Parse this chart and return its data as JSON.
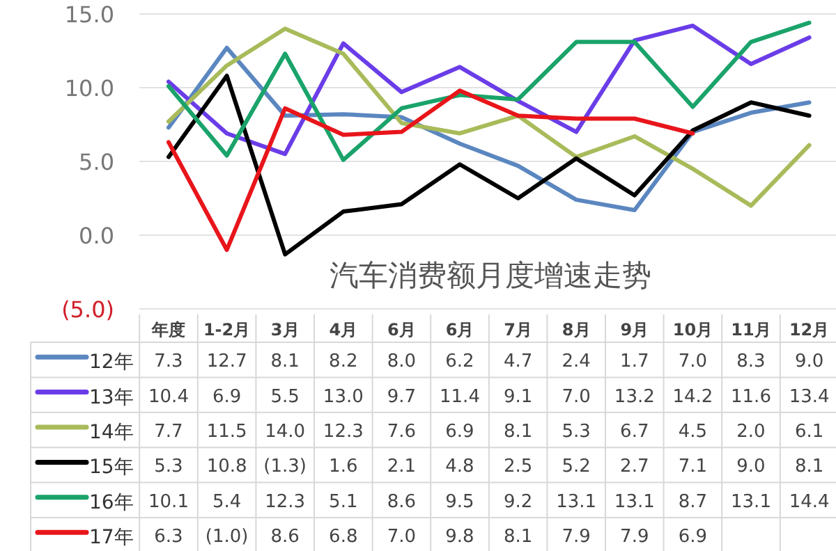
{
  "chart_data": {
    "type": "line",
    "title": "汽车消费额月度增速走势",
    "categories": [
      "年度",
      "1-2月",
      "3月",
      "4月",
      "6月",
      "6月",
      "7月",
      "8月",
      "9月",
      "10月",
      "11月",
      "12月"
    ],
    "ylim": [
      -5,
      15
    ],
    "yticks": [
      {
        "value": 15,
        "label": "15.0"
      },
      {
        "value": 10,
        "label": "10.0"
      },
      {
        "value": 5,
        "label": "5.0"
      },
      {
        "value": 0,
        "label": "0.0"
      },
      {
        "value": -5,
        "label": "(5.0)"
      }
    ],
    "grid": "y",
    "legend": "bottom",
    "series": [
      {
        "name": "12年",
        "color": "#5b87c0",
        "values": [
          7.3,
          12.7,
          8.1,
          8.2,
          8.0,
          6.2,
          4.7,
          2.4,
          1.7,
          7.0,
          8.3,
          9.0
        ],
        "value_labels": [
          "7.3",
          "12.7",
          "8.1",
          "8.2",
          "8.0",
          "6.2",
          "4.7",
          "2.4",
          "1.7",
          "7.0",
          "8.3",
          "9.0"
        ]
      },
      {
        "name": "13年",
        "color": "#6a3de8",
        "values": [
          10.4,
          6.9,
          5.5,
          13.0,
          9.7,
          11.4,
          9.1,
          7.0,
          13.2,
          14.2,
          11.6,
          13.4
        ],
        "value_labels": [
          "10.4",
          "6.9",
          "5.5",
          "13.0",
          "9.7",
          "11.4",
          "9.1",
          "7.0",
          "13.2",
          "14.2",
          "11.6",
          "13.4"
        ]
      },
      {
        "name": "14年",
        "color": "#a8bb5a",
        "values": [
          7.7,
          11.5,
          14.0,
          12.3,
          7.6,
          6.9,
          8.1,
          5.3,
          6.7,
          4.5,
          2.0,
          6.1
        ],
        "value_labels": [
          "7.7",
          "11.5",
          "14.0",
          "12.3",
          "7.6",
          "6.9",
          "8.1",
          "5.3",
          "6.7",
          "4.5",
          "2.0",
          "6.1"
        ]
      },
      {
        "name": "15年",
        "color": "#000000",
        "values": [
          5.3,
          10.8,
          -1.3,
          1.6,
          2.1,
          4.8,
          2.5,
          5.2,
          2.7,
          7.1,
          9.0,
          8.1
        ],
        "value_labels": [
          "5.3",
          "10.8",
          "(1.3)",
          "1.6",
          "2.1",
          "4.8",
          "2.5",
          "5.2",
          "2.7",
          "7.1",
          "9.0",
          "8.1"
        ]
      },
      {
        "name": "16年",
        "color": "#1aa36a",
        "values": [
          10.1,
          5.4,
          12.3,
          5.1,
          8.6,
          9.5,
          9.2,
          13.1,
          13.1,
          8.7,
          13.1,
          14.4
        ],
        "value_labels": [
          "10.1",
          "5.4",
          "12.3",
          "5.1",
          "8.6",
          "9.5",
          "9.2",
          "13.1",
          "13.1",
          "8.7",
          "13.1",
          "14.4"
        ]
      },
      {
        "name": "17年",
        "color": "#e8151b",
        "values": [
          6.3,
          -1.0,
          8.6,
          6.8,
          7.0,
          9.8,
          8.1,
          7.9,
          7.9,
          6.9,
          null,
          null
        ],
        "value_labels": [
          "6.3",
          "(1.0)",
          "8.6",
          "6.8",
          "7.0",
          "9.8",
          "8.1",
          "7.9",
          "7.9",
          "6.9",
          null,
          null
        ]
      }
    ]
  }
}
